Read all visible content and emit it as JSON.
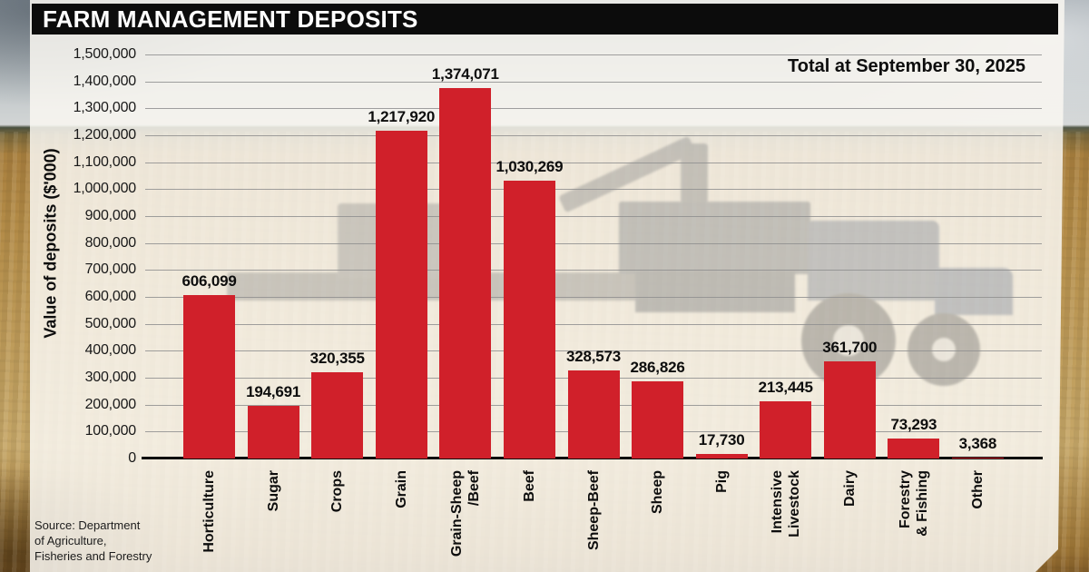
{
  "title": "FARM MANAGEMENT DEPOSITS",
  "annotation": "Total at September 30, 2025",
  "source": "Source: Department\nof Agriculture,\nFisheries and Forestry",
  "colors": {
    "bar": "#d0202a",
    "titlebar": "#0c0c0c",
    "gridline": "#8f8f8f",
    "baseline": "#0e0e0e"
  },
  "chart_data": {
    "type": "bar",
    "title": "FARM MANAGEMENT DEPOSITS",
    "subtitle": "Total at September 30, 2025",
    "xlabel": "",
    "ylabel": "Value of deposits ($'000)",
    "ylim": [
      0,
      1500000
    ],
    "ytick_step": 100000,
    "grid": true,
    "legend": "none",
    "categories": [
      "Horticulture",
      "Sugar",
      "Crops",
      "Grain",
      "Grain-Sheep\n/Beef",
      "Beef",
      "Sheep-Beef",
      "Sheep",
      "Pig",
      "Intensive\nLivestock",
      "Dairy",
      "Forestry\n& Fishing",
      "Other"
    ],
    "values": [
      606099,
      194691,
      320355,
      1217920,
      1374071,
      1030269,
      328573,
      286826,
      17730,
      213445,
      361700,
      73293,
      3368
    ],
    "value_labels": [
      "606,099",
      "194,691",
      "320,355",
      "1,217,920",
      "1,374,071",
      "1,030,269",
      "328,573",
      "286,826",
      "17,730",
      "213,445",
      "361,700",
      "73,293",
      "3,368"
    ],
    "ytick_labels": [
      "0",
      "100,000",
      "200,000",
      "300,000",
      "400,000",
      "500,000",
      "600,000",
      "700,000",
      "800,000",
      "900,000",
      "1,000,000",
      "1,100,000",
      "1,200,000",
      "1,300,000",
      "1,400,000",
      "1,500,000"
    ]
  }
}
